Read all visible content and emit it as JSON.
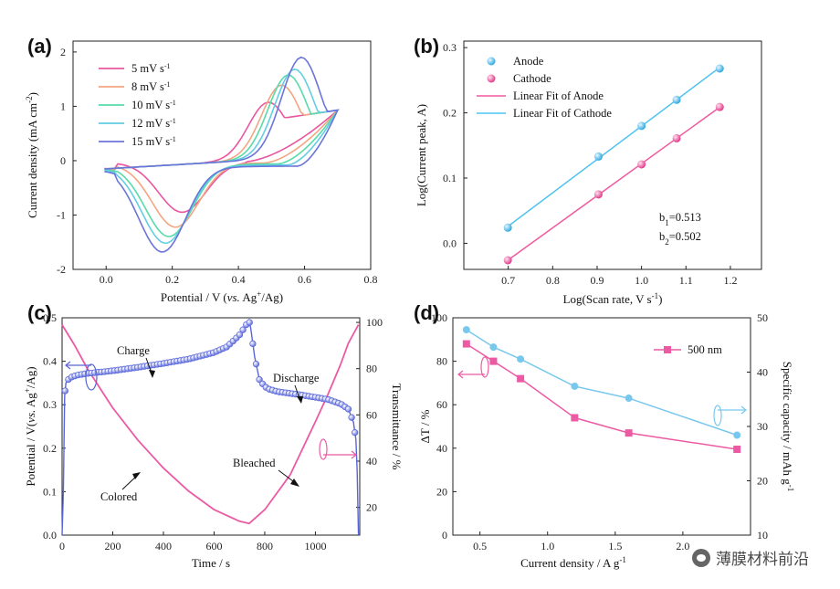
{
  "chart_data": [
    {
      "panel": "(a)",
      "type": "line",
      "xlabel": "Potential / V (vs. Ag+/Ag)",
      "ylabel": "Current density (mA cm-2)",
      "xlim": [
        -0.1,
        0.8
      ],
      "ylim": [
        -2,
        2.2
      ],
      "xticks": [
        "0.0",
        "0.2",
        "0.4",
        "0.6",
        "0.8"
      ],
      "yticks": [
        "-2",
        "-1",
        "0",
        "1",
        "2"
      ],
      "series": [
        {
          "name": "5 mV s-1",
          "color": "#e8569f",
          "anodic_peak": [
            0.49,
            1.05
          ],
          "cathodic_peak": [
            0.23,
            -0.92
          ],
          "cathodic_onset": 0.42,
          "cathodic_start_current": -0.02,
          "vertex_current": 0.93
        },
        {
          "name": "8 mV s-1",
          "color": "#f4a582",
          "anodic_peak": [
            0.53,
            1.35
          ],
          "cathodic_peak": [
            0.21,
            -1.17
          ],
          "cathodic_onset": 0.48,
          "cathodic_start_current": -0.04,
          "vertex_current": 0.93
        },
        {
          "name": "10 mV s-1",
          "color": "#57dba8",
          "anodic_peak": [
            0.55,
            1.53
          ],
          "cathodic_peak": [
            0.19,
            -1.32
          ],
          "cathodic_onset": 0.52,
          "cathodic_start_current": -0.06,
          "vertex_current": 0.93
        },
        {
          "name": "12 mV s-1",
          "color": "#62cde3",
          "anodic_peak": [
            0.57,
            1.63
          ],
          "cathodic_peak": [
            0.18,
            -1.42
          ],
          "cathodic_onset": 0.55,
          "cathodic_start_current": -0.08,
          "vertex_current": 0.93
        },
        {
          "name": "15 mV s-1",
          "color": "#6b75d9",
          "anodic_peak": [
            0.59,
            1.84
          ],
          "cathodic_peak": [
            0.17,
            -1.56
          ],
          "cathodic_onset": 0.58,
          "cathodic_start_current": -0.1,
          "vertex_current": 0.93
        }
      ]
    },
    {
      "panel": "(b)",
      "type": "scatter",
      "xlabel": "Log(Scan rate, V s-1)",
      "ylabel": "Log(Current peak, A)",
      "xlim": [
        0.6,
        1.27
      ],
      "ylim": [
        -0.04,
        0.31
      ],
      "xticks": [
        "0.7",
        "0.8",
        "0.9",
        "1.0",
        "1.1",
        "1.2"
      ],
      "yticks": [
        "0.0",
        "0.1",
        "0.2",
        "0.3"
      ],
      "x": [
        0.699,
        0.903,
        1.0,
        1.079,
        1.176
      ],
      "series": [
        {
          "name": "Anode",
          "color": "#4fc3f0",
          "values": [
            0.024,
            0.133,
            0.18,
            0.22,
            0.268
          ]
        },
        {
          "name": "Cathode",
          "color": "#f0589f",
          "values": [
            -0.026,
            0.075,
            0.121,
            0.161,
            0.209
          ]
        }
      ],
      "fits": [
        {
          "name": "Linear Fit of Anode",
          "color": "#f0589f"
        },
        {
          "name": "Linear Fit of Cathode",
          "color": "#4fc3f0"
        }
      ],
      "annotations": {
        "b1_prefix": "b",
        "b1_sub": "1",
        "b1_value": "=0.513",
        "b2_prefix": "b",
        "b2_sub": "2",
        "b2_value": "=0.502"
      }
    },
    {
      "panel": "(c)",
      "type": "line",
      "xlabel": "Time / s",
      "ylabel_left": "Potential / V(vs. Ag+/Ag)",
      "ylabel_right": "Transmittance / %",
      "xlim": [
        0,
        1175
      ],
      "ylim_left": [
        0,
        0.5
      ],
      "ylim_right": [
        8,
        102
      ],
      "xticks": [
        "0",
        "200",
        "400",
        "600",
        "800",
        "1000"
      ],
      "yticks_left": [
        "0.0",
        "0.1",
        "0.2",
        "0.3",
        "0.4",
        "0.5"
      ],
      "yticks_right": [
        "20",
        "40",
        "60",
        "80",
        "100"
      ],
      "potential_color": "#5866d8",
      "transmittance_color": "#ec5aa4",
      "potential_series": {
        "name": "Potential",
        "x": [
          0,
          5,
          10,
          15,
          30,
          60,
          100,
          200,
          300,
          400,
          500,
          600,
          650,
          700,
          725,
          738,
          745,
          760,
          780,
          810,
          850,
          900,
          950,
          1000,
          1050,
          1100,
          1130,
          1150,
          1160,
          1165,
          1170
        ],
        "values": [
          0.0,
          0.1,
          0.32,
          0.35,
          0.362,
          0.368,
          0.372,
          0.378,
          0.386,
          0.395,
          0.405,
          0.42,
          0.433,
          0.46,
          0.482,
          0.495,
          0.475,
          0.41,
          0.355,
          0.337,
          0.33,
          0.326,
          0.322,
          0.317,
          0.312,
          0.302,
          0.29,
          0.26,
          0.22,
          0.145,
          0.0
        ]
      },
      "transmittance_series": {
        "name": "Transmittance",
        "x": [
          0,
          50,
          100,
          200,
          300,
          400,
          500,
          600,
          700,
          738,
          800,
          900,
          1000,
          1050,
          1100,
          1130,
          1170
        ],
        "values": [
          99,
          90,
          80,
          63,
          49,
          37,
          27,
          19,
          14,
          13,
          19,
          34,
          57,
          69,
          82,
          91,
          99
        ]
      },
      "annotations": {
        "charge": "Charge",
        "discharge": "Discharge",
        "colored": "Colored",
        "bleached": "Bleached"
      }
    },
    {
      "panel": "(d)",
      "type": "line",
      "xlabel": "Current density / A g-1",
      "ylabel_left": "ΔT / %",
      "ylabel_right": "Specific capacity / mAh g-1",
      "xlim": [
        0.3,
        2.5
      ],
      "ylim_left": [
        0,
        100
      ],
      "ylim_right": [
        10,
        50
      ],
      "xticks": [
        "0.5",
        "1.0",
        "1.5",
        "2.0"
      ],
      "yticks_left": [
        "0",
        "20",
        "40",
        "60",
        "80",
        "100"
      ],
      "yticks_right": [
        "10",
        "20",
        "30",
        "40",
        "50"
      ],
      "x": [
        0.4,
        0.6,
        0.8,
        1.2,
        1.6,
        2.4
      ],
      "series": [
        {
          "name": "500 nm",
          "axis": "left",
          "color": "#ec5aa4",
          "values": [
            88,
            80,
            72,
            54,
            47,
            39.5
          ]
        },
        {
          "name": "Specific capacity",
          "axis": "right",
          "color": "#78c8ee",
          "values": [
            47.8,
            44.6,
            42.4,
            37.4,
            35.2,
            28.4
          ]
        }
      ],
      "legend": "500 nm"
    }
  ],
  "panel_labels": [
    "(a)",
    "(b)",
    "(c)",
    "(d)"
  ],
  "watermark": "薄膜材料前沿"
}
